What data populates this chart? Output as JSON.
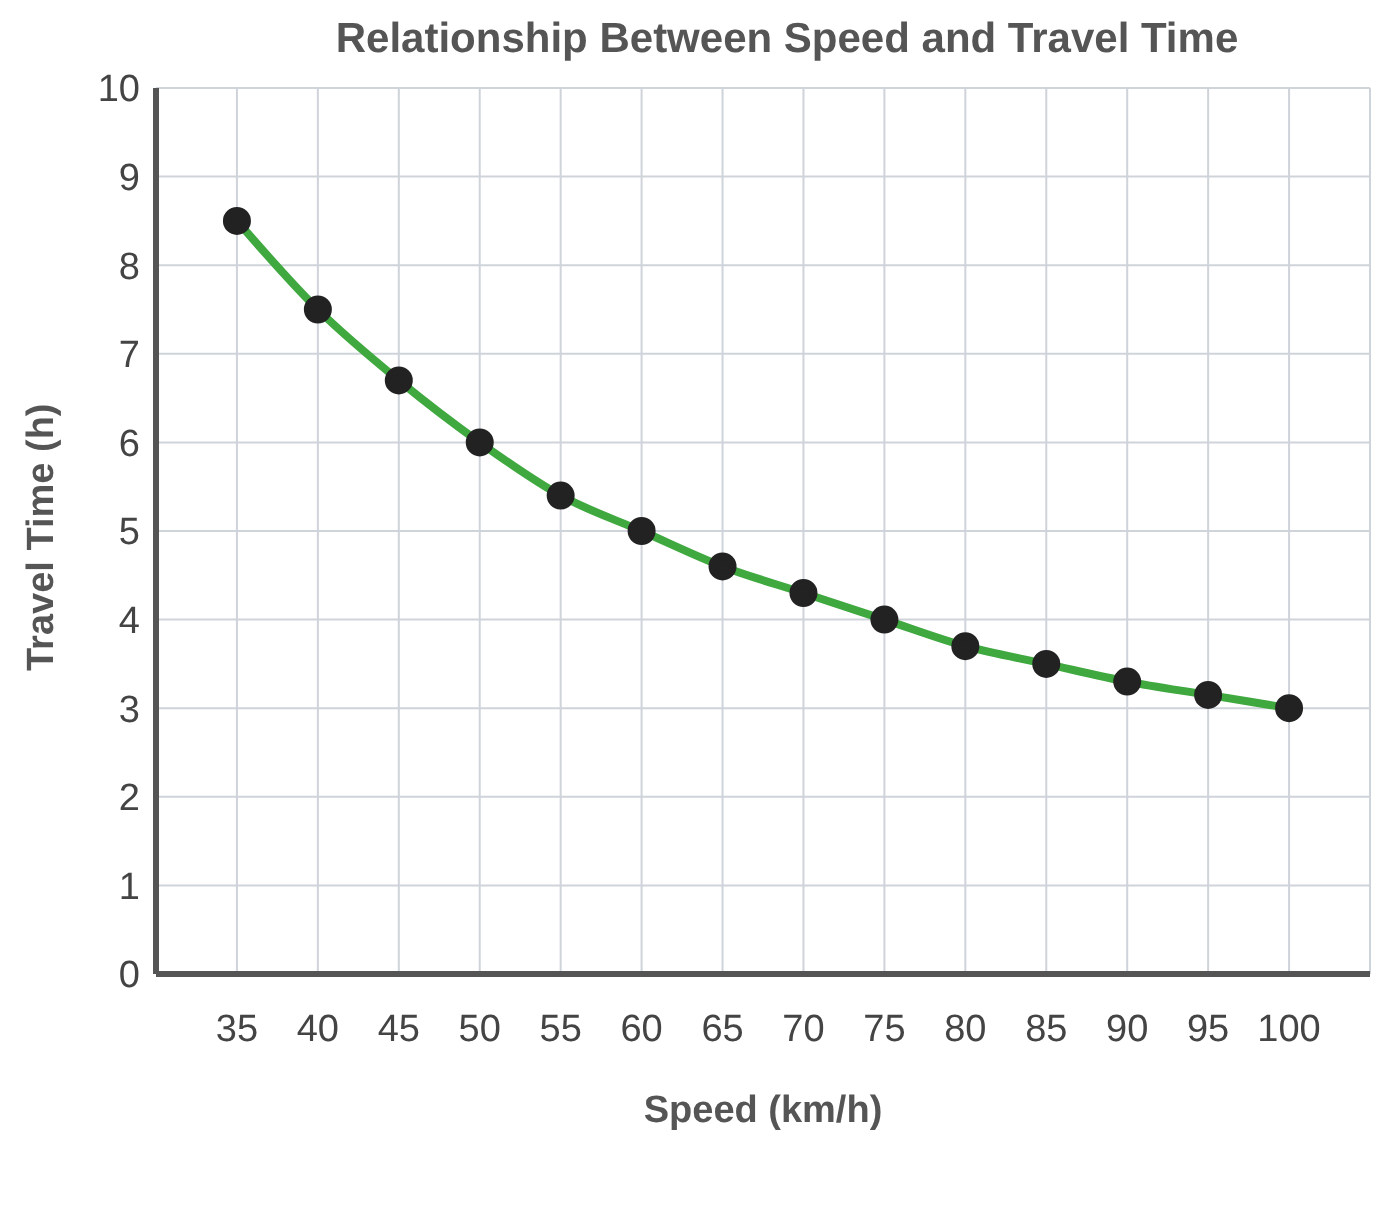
{
  "chart_data": {
    "type": "line",
    "title": "Relationship Between Speed and Travel Time",
    "xlabel": "Speed (km/h)",
    "ylabel": "Travel Time (h)",
    "x": [
      35,
      40,
      45,
      50,
      55,
      60,
      65,
      70,
      75,
      80,
      85,
      90,
      95,
      100
    ],
    "series": [
      {
        "color": "#3fa83f",
        "values": [
          8.5,
          7.5,
          6.7,
          6.0,
          5.4,
          5.0,
          4.6,
          4.3,
          4.0,
          3.7,
          3.5,
          3.3,
          3.15,
          3.0
        ]
      }
    ],
    "xlim": [
      30,
      105
    ],
    "xticks": [
      35,
      40,
      45,
      50,
      55,
      60,
      65,
      70,
      75,
      80,
      85,
      90,
      95,
      100
    ],
    "ylim": [
      0,
      10
    ],
    "yticks": [
      0,
      1,
      2,
      3,
      4,
      5,
      6,
      7,
      8,
      9,
      10
    ],
    "grid": true,
    "marker": "circle",
    "line_style": "solid",
    "legend": false
  }
}
